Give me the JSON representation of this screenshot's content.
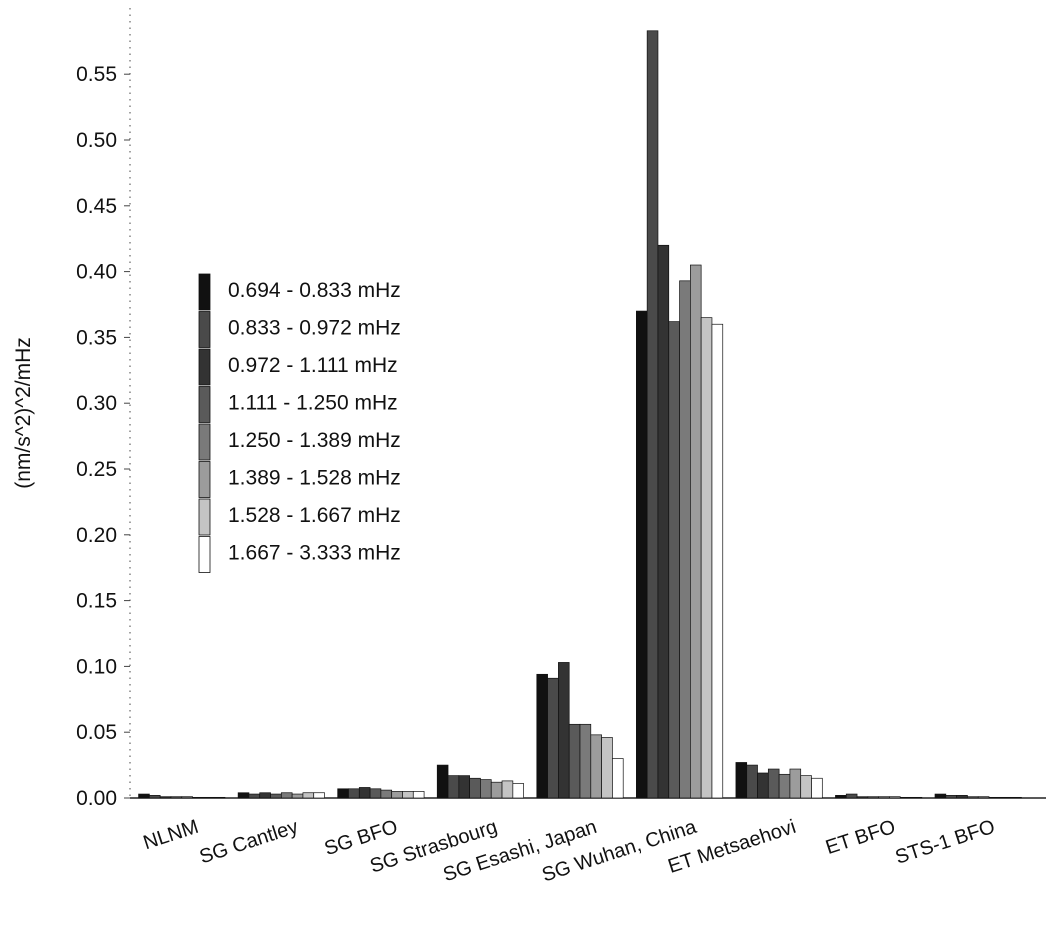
{
  "chart_data": {
    "type": "bar",
    "title": "",
    "xlabel": "",
    "ylabel": "(nm/s^2)^2/mHz",
    "ylim": [
      0,
      0.58
    ],
    "yticks": [
      "0.00",
      "0.05",
      "0.10",
      "0.15",
      "0.20",
      "0.25",
      "0.30",
      "0.35",
      "0.40",
      "0.45",
      "0.50",
      "0.55"
    ],
    "grid": false,
    "legend_position": "left",
    "categories": [
      "NLNM",
      "SG Cantley",
      "SG BFO",
      "SG Strasbourg",
      "SG Esashi, Japan",
      "SG Wuhan, China",
      "ET Metsaehovi",
      "ET BFO",
      "STS-1 BFO"
    ],
    "series": [
      {
        "name": "0.694 - 0.833 mHz",
        "color": "#111111",
        "values": [
          0.003,
          0.004,
          0.007,
          0.025,
          0.094,
          0.37,
          0.027,
          0.002,
          0.003
        ]
      },
      {
        "name": "0.833 - 0.972 mHz",
        "color": "#4a4a4a",
        "values": [
          0.002,
          0.003,
          0.007,
          0.017,
          0.091,
          0.583,
          0.025,
          0.003,
          0.002
        ]
      },
      {
        "name": "0.972 - 1.111 mHz",
        "color": "#333333",
        "values": [
          0.001,
          0.004,
          0.008,
          0.017,
          0.103,
          0.42,
          0.019,
          0.001,
          0.002
        ]
      },
      {
        "name": "1.111 - 1.250 mHz",
        "color": "#5a5a5a",
        "values": [
          0.001,
          0.003,
          0.007,
          0.015,
          0.056,
          0.362,
          0.022,
          0.001,
          0.001
        ]
      },
      {
        "name": "1.250 - 1.389 mHz",
        "color": "#7a7a7a",
        "values": [
          0.001,
          0.004,
          0.006,
          0.014,
          0.056,
          0.393,
          0.018,
          0.001,
          0.001
        ]
      },
      {
        "name": "1.389 - 1.528 mHz",
        "color": "#9c9c9c",
        "values": [
          0.0005,
          0.003,
          0.005,
          0.012,
          0.048,
          0.405,
          0.022,
          0.001,
          0.0005
        ]
      },
      {
        "name": "1.528 - 1.667 mHz",
        "color": "#c4c4c4",
        "values": [
          0.0005,
          0.004,
          0.005,
          0.013,
          0.046,
          0.365,
          0.017,
          0.0005,
          0.0005
        ]
      },
      {
        "name": "1.667 - 3.333 mHz",
        "color": "#ffffff",
        "values": [
          0.0005,
          0.004,
          0.005,
          0.011,
          0.03,
          0.36,
          0.015,
          0.0005,
          0.0005
        ]
      }
    ]
  }
}
